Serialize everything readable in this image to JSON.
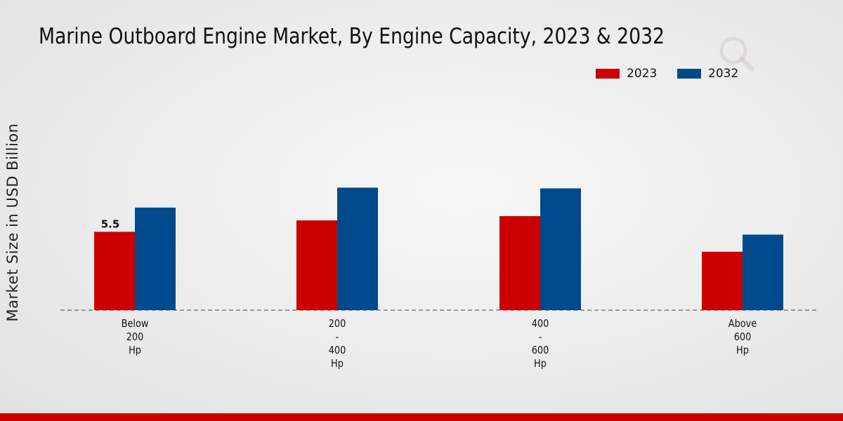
{
  "chart_data": {
    "type": "bar",
    "title": "Marine Outboard Engine Market, By Engine Capacity, 2023 & 2032",
    "xlabel": "",
    "ylabel": "Market Size in USD Billion",
    "categories": [
      [
        "Below",
        "200",
        "Hp"
      ],
      [
        "200",
        "-",
        "400",
        "Hp"
      ],
      [
        "400",
        "-",
        "600",
        "Hp"
      ],
      [
        "Above",
        "600",
        "Hp"
      ]
    ],
    "series": [
      {
        "name": "2023",
        "color": "#cc0000",
        "values": [
          5.5,
          6.3,
          6.6,
          4.1
        ]
      },
      {
        "name": "2032",
        "color": "#004a8c",
        "values": [
          7.2,
          8.6,
          8.55,
          5.3
        ]
      }
    ],
    "data_labels": [
      {
        "series": 0,
        "index": 0,
        "text": "5.5"
      }
    ],
    "ylim": [
      0,
      14
    ],
    "grid": false,
    "legend": "top-right"
  }
}
